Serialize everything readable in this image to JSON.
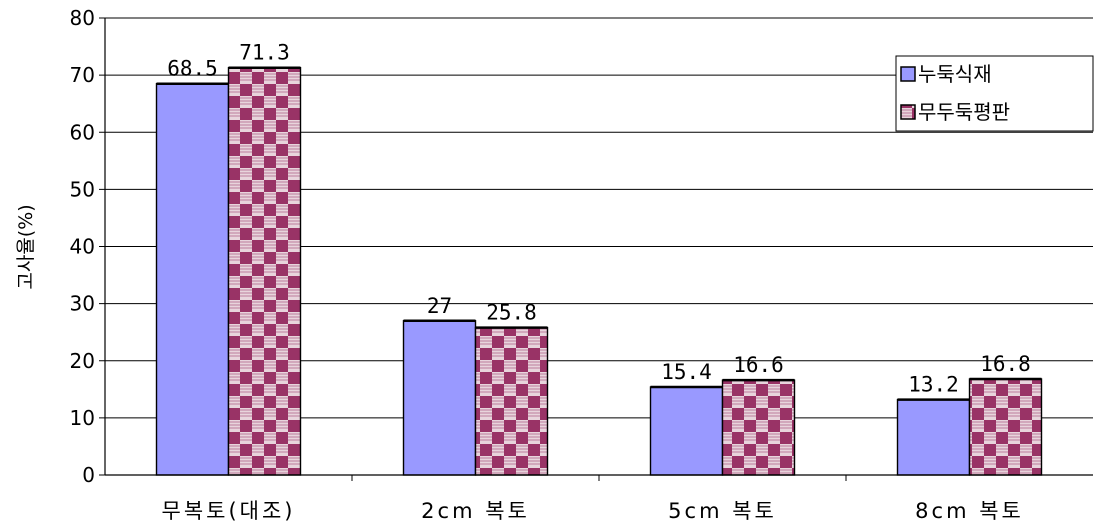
{
  "chart_data": {
    "type": "bar",
    "title": "",
    "xlabel": "",
    "ylabel": "고사율(%)",
    "ylim": [
      0,
      80
    ],
    "yticks": [
      0,
      10,
      20,
      30,
      40,
      50,
      60,
      70,
      80
    ],
    "grid": true,
    "legend_position": "top-right",
    "categories": [
      "무복토(대조)",
      "2cm 복토",
      "5cm 복토",
      "8cm 복토"
    ],
    "series": [
      {
        "name": "누둑식재",
        "values": [
          68.5,
          27,
          15.4,
          13.2
        ],
        "labels": [
          "68.5",
          "27",
          "15.4",
          "13.2"
        ],
        "color": "#9999ff"
      },
      {
        "name": "무두둑평판",
        "values": [
          71.3,
          25.8,
          16.6,
          16.8
        ],
        "labels": [
          "71.3",
          "25.8",
          "16.6",
          "16.8"
        ],
        "color": "#993366"
      }
    ]
  }
}
